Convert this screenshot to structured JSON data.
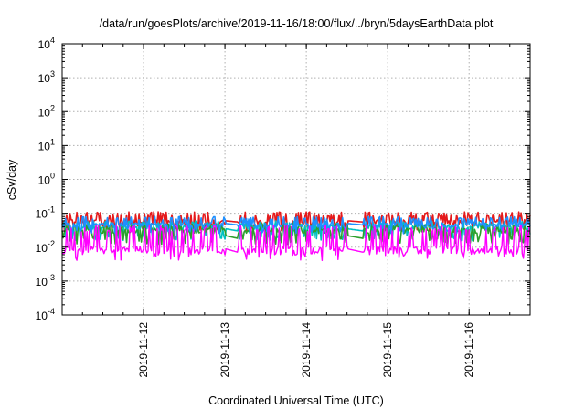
{
  "chart_data": {
    "type": "line",
    "title": "/data/run/goesPlots/archive/2019-11-16/18:00/flux/../bryn/5daysEarthData.plot",
    "xlabel": "Coordinated Universal Time (UTC)",
    "ylabel": "cSv/day",
    "yscale": "log",
    "ylim": [
      0.0001,
      10000
    ],
    "xlim": [
      "2019-11-11T00:00:00Z",
      "2019-11-16T18:00:00Z"
    ],
    "grid": true,
    "legend": "none",
    "y_ticks": [
      {
        "value": 0.0001,
        "base": "10",
        "exp": "-4"
      },
      {
        "value": 0.001,
        "base": "10",
        "exp": "-3"
      },
      {
        "value": 0.01,
        "base": "10",
        "exp": "-2"
      },
      {
        "value": 0.1,
        "base": "10",
        "exp": "-1"
      },
      {
        "value": 1,
        "base": "10",
        "exp": "0"
      },
      {
        "value": 10,
        "base": "10",
        "exp": "1"
      },
      {
        "value": 100,
        "base": "10",
        "exp": "2"
      },
      {
        "value": 1000,
        "base": "10",
        "exp": "3"
      },
      {
        "value": 10000,
        "base": "10",
        "exp": "4"
      }
    ],
    "x_ticks": [
      "2019-11-12",
      "2019-11-13",
      "2019-11-14",
      "2019-11-15",
      "2019-11-16"
    ],
    "data_gaps": [
      [
        "2019-11-13T00:06:00Z",
        "2019-11-13T04:00:00Z"
      ],
      [
        "2019-11-14T12:00:00Z",
        "2019-11-14T17:00:00Z"
      ]
    ],
    "series": [
      {
        "color": "#e41a1c",
        "band": [
          0.03,
          0.11
        ],
        "typical": 0.055,
        "gap_levels": [
          0.06,
          0.055
        ]
      },
      {
        "color": "#00c0c0",
        "band": [
          0.015,
          0.06
        ],
        "typical": 0.04,
        "gap_levels": [
          0.035,
          0.03
        ]
      },
      {
        "color": "#2ca02c",
        "band": [
          0.012,
          0.05
        ],
        "typical": 0.03,
        "gap_levels": [
          0.022,
          0.018
        ]
      },
      {
        "color": "#1e90ff",
        "band": [
          0.025,
          0.08
        ],
        "typical": 0.045,
        "gap_levels": [
          0.05,
          0.045
        ]
      },
      {
        "color": "#ff00ff",
        "band": [
          0.004,
          0.045
        ],
        "typical": 0.008,
        "gap_levels": [
          0.009,
          0.007
        ]
      }
    ]
  }
}
